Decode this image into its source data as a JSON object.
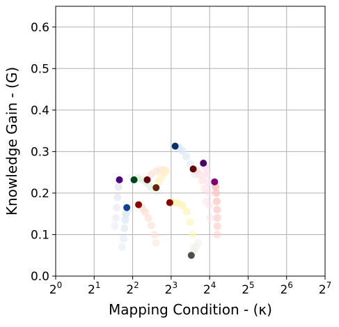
{
  "chart_data": {
    "type": "scatter",
    "title": "",
    "xlabel": "Mapping Condition - (κ)",
    "ylabel": "Knowledge Gain - (G)",
    "xscale": "log2",
    "xlim": [
      1,
      128
    ],
    "ylim": [
      0,
      0.65
    ],
    "grid": true,
    "x_ticks": [
      {
        "base": "2",
        "exp": "0",
        "value": 1
      },
      {
        "base": "2",
        "exp": "1",
        "value": 2
      },
      {
        "base": "2",
        "exp": "2",
        "value": 4
      },
      {
        "base": "2",
        "exp": "3",
        "value": 8
      },
      {
        "base": "2",
        "exp": "4",
        "value": 16
      },
      {
        "base": "2",
        "exp": "5",
        "value": 32
      },
      {
        "base": "2",
        "exp": "6",
        "value": 64
      },
      {
        "base": "2",
        "exp": "7",
        "value": 128
      }
    ],
    "y_ticks": [
      "0.0",
      "0.1",
      "0.2",
      "0.3",
      "0.4",
      "0.5",
      "0.6"
    ],
    "y_tick_values": [
      0,
      0.1,
      0.2,
      0.3,
      0.4,
      0.5,
      0.6
    ],
    "series": [
      {
        "color": "#4b0082",
        "fade": "#e6e6f2",
        "points": [
          [
            3.15,
            0.232
          ],
          [
            3.1,
            0.215
          ],
          [
            3.05,
            0.19
          ],
          [
            3.0,
            0.165
          ],
          [
            2.95,
            0.14
          ],
          [
            2.9,
            0.12
          ]
        ]
      },
      {
        "color": "#084594",
        "fade": "#dbe8f5",
        "points": [
          [
            3.6,
            0.165
          ],
          [
            3.55,
            0.15
          ],
          [
            3.5,
            0.135
          ],
          [
            3.45,
            0.115
          ],
          [
            3.4,
            0.09
          ],
          [
            3.3,
            0.07
          ]
        ]
      },
      {
        "color": "#00441b",
        "fade": "#dff0da",
        "points": [
          [
            4.1,
            0.232
          ],
          [
            4.4,
            0.235
          ],
          [
            4.8,
            0.232
          ],
          [
            5.1,
            0.226
          ],
          [
            5.4,
            0.218
          ],
          [
            5.6,
            0.212
          ]
        ]
      },
      {
        "color": "#8b0000",
        "fade": "#fde0d2",
        "points": [
          [
            4.45,
            0.172
          ],
          [
            4.7,
            0.166
          ],
          [
            5.0,
            0.155
          ],
          [
            5.3,
            0.14
          ],
          [
            5.6,
            0.122
          ],
          [
            5.9,
            0.1
          ],
          [
            6.1,
            0.08
          ]
        ]
      },
      {
        "color": "#67000d",
        "fade": "#fee5d9",
        "points": [
          [
            5.2,
            0.232
          ],
          [
            5.6,
            0.245
          ],
          [
            6.1,
            0.252
          ],
          [
            6.6,
            0.256
          ],
          [
            7.0,
            0.255
          ],
          [
            7.2,
            0.252
          ]
        ]
      },
      {
        "color": "#662506",
        "fade": "#fff0c4",
        "points": [
          [
            6.1,
            0.213
          ],
          [
            6.4,
            0.228
          ],
          [
            6.8,
            0.24
          ],
          [
            7.1,
            0.25
          ],
          [
            7.3,
            0.255
          ]
        ]
      },
      {
        "color": "#8b0000",
        "fade": "#fff3b0",
        "points": [
          [
            7.8,
            0.177
          ],
          [
            8.3,
            0.178
          ],
          [
            9.0,
            0.176
          ],
          [
            9.8,
            0.17
          ],
          [
            10.6,
            0.155
          ],
          [
            11.3,
            0.13
          ],
          [
            11.8,
            0.1
          ],
          [
            12.0,
            0.07
          ]
        ]
      },
      {
        "color": "#08306b",
        "fade": "#dde8f4",
        "points": [
          [
            8.6,
            0.313
          ],
          [
            9.2,
            0.31
          ],
          [
            9.8,
            0.302
          ],
          [
            10.5,
            0.288
          ],
          [
            11.3,
            0.27
          ],
          [
            12.2,
            0.245
          ]
        ]
      },
      {
        "color": "#67000d",
        "fade": "#fde0dd",
        "points": [
          [
            11.9,
            0.258
          ],
          [
            12.6,
            0.254
          ],
          [
            13.3,
            0.245
          ],
          [
            14.0,
            0.23
          ],
          [
            14.6,
            0.21
          ],
          [
            15.0,
            0.18
          ]
        ]
      },
      {
        "color": "#49006a",
        "fade": "#fde0ef",
        "points": [
          [
            14.3,
            0.272
          ],
          [
            14.8,
            0.262
          ],
          [
            15.2,
            0.245
          ],
          [
            15.6,
            0.225
          ],
          [
            15.8,
            0.2
          ],
          [
            16.0,
            0.17
          ],
          [
            16.1,
            0.14
          ]
        ]
      },
      {
        "color": "#7a0177",
        "fade": "#fcc5c0",
        "points": [
          [
            17.5,
            0.227
          ],
          [
            17.8,
            0.215
          ],
          [
            18.0,
            0.2
          ],
          [
            18.2,
            0.18
          ],
          [
            18.3,
            0.16
          ],
          [
            18.4,
            0.14
          ],
          [
            18.4,
            0.12
          ],
          [
            18.3,
            0.1
          ]
        ]
      },
      {
        "color": "#4d4d4d",
        "fade": "#eeeeee",
        "points": [
          [
            11.5,
            0.05
          ],
          [
            12.0,
            0.06
          ],
          [
            12.5,
            0.07
          ],
          [
            13.0,
            0.08
          ]
        ]
      }
    ]
  }
}
